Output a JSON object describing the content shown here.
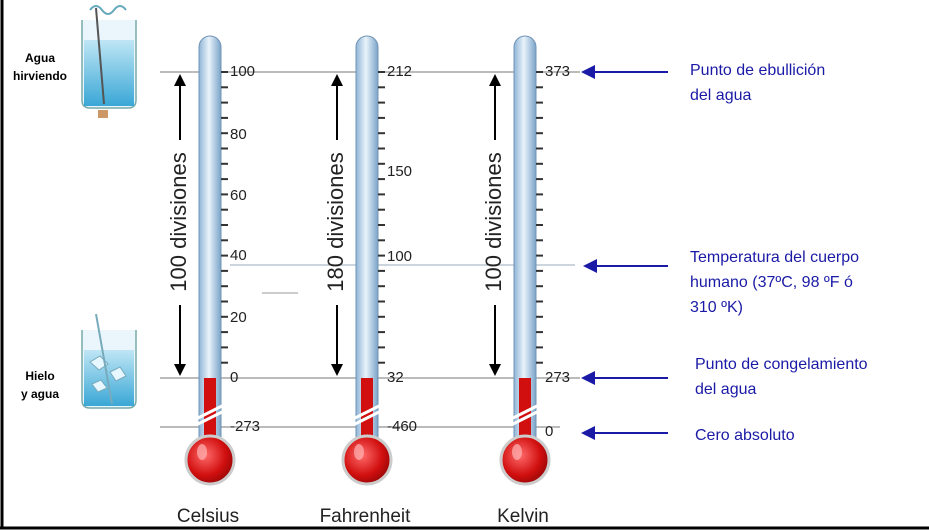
{
  "beakers": [
    {
      "lines": [
        "Agua",
        "hirviendo"
      ]
    },
    {
      "lines": [
        "Hielo",
        "y agua"
      ]
    }
  ],
  "thermometers": [
    {
      "name": "Celsius",
      "divisions": "100 divisiones",
      "ticks": [
        "100",
        "80",
        "60",
        "40",
        "20",
        "0",
        "-273"
      ]
    },
    {
      "name": "Fahrenheit",
      "divisions": "180 divisiones",
      "ticks": [
        "212",
        "150",
        "100",
        "32",
        "-460"
      ]
    },
    {
      "name": "Kelvin",
      "divisions": "100 divisiones",
      "ticks": [
        "373",
        "273",
        "0"
      ]
    }
  ],
  "annotations": [
    {
      "lines": [
        "Punto de ebullición",
        "del agua"
      ]
    },
    {
      "lines": [
        "Temperatura del cuerpo",
        "humano (37ºC, 98 ºF ó",
        "310 ºK)"
      ]
    },
    {
      "lines": [
        "Punto de congelamiento",
        "del agua"
      ]
    },
    {
      "lines": [
        "Cero absoluto"
      ]
    }
  ]
}
